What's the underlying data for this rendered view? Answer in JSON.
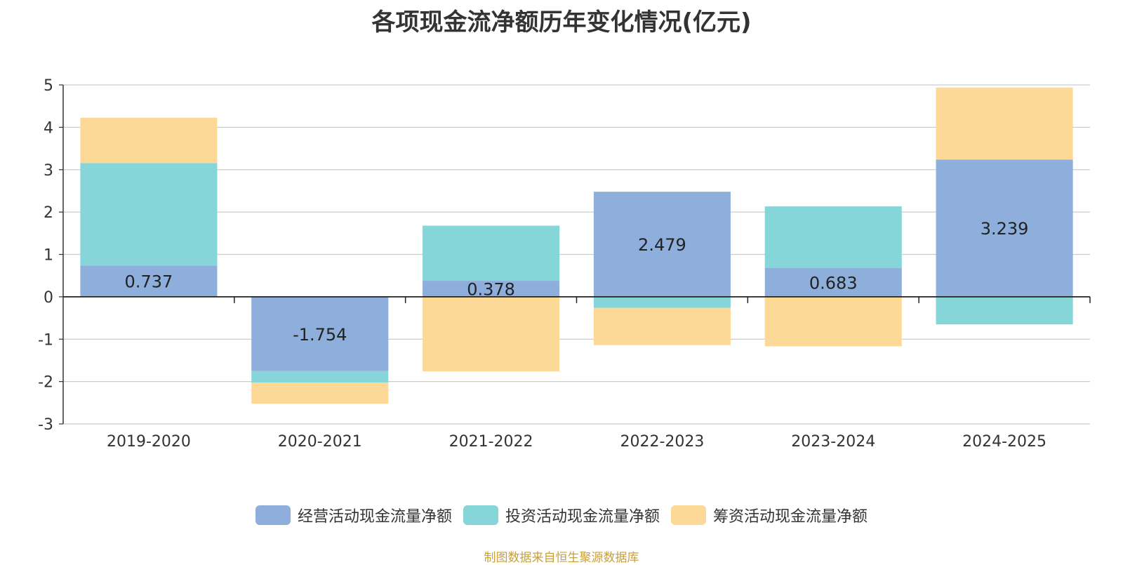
{
  "chart_data": {
    "type": "bar",
    "stacked": true,
    "title": "各项现金流净额历年变化情况(亿元)",
    "categories": [
      "2019-2020",
      "2020-2021",
      "2021-2022",
      "2022-2023",
      "2023-2024",
      "2024-2025"
    ],
    "series": [
      {
        "name": "经营活动现金流量净额",
        "color": "#8eaedb",
        "values": [
          0.737,
          -1.754,
          0.378,
          2.479,
          0.683,
          3.239
        ]
      },
      {
        "name": "投资活动现金流量净额",
        "color": "#86d5d8",
        "values": [
          2.42,
          -0.27,
          1.3,
          -0.26,
          1.45,
          -0.65
        ]
      },
      {
        "name": "筹资活动现金流量净额",
        "color": "#fdd998",
        "values": [
          1.07,
          -0.5,
          -1.76,
          -0.88,
          -1.17,
          1.7
        ]
      }
    ],
    "data_labels": [
      "0.737",
      "-1.754",
      "0.378",
      "2.479",
      "0.683",
      "3.239"
    ],
    "ylim": [
      -3,
      5
    ],
    "yticks": [
      5,
      4,
      3,
      2,
      1,
      0,
      -1,
      -2,
      -3
    ],
    "grid": true,
    "legend_position": "bottom"
  },
  "source": "制图数据来自恒生聚源数据库"
}
